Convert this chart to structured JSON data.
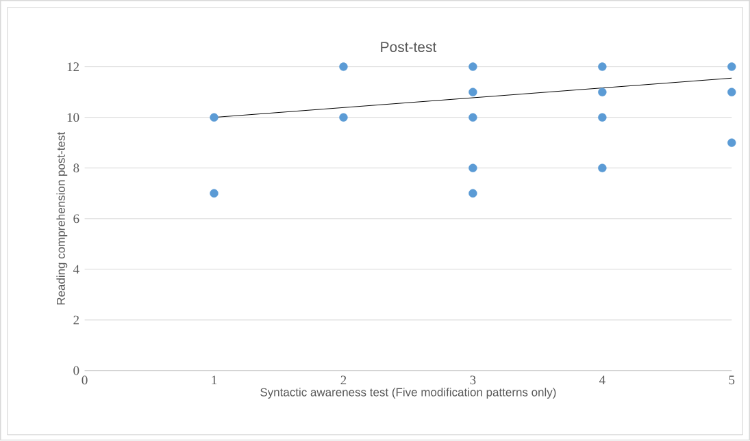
{
  "chart_data": {
    "type": "scatter",
    "title": "Post-test",
    "xlabel": "Syntactic awareness test (Five modification patterns only)",
    "ylabel": "Reading comprehension post-test",
    "series": [
      {
        "color": "#5b9bd5",
        "marker": "circle",
        "x": [
          1,
          1,
          2,
          2,
          3,
          3,
          3,
          3,
          3,
          4,
          4,
          4,
          4,
          5,
          5,
          5
        ],
        "values": [
          10,
          7,
          12,
          10,
          12,
          11,
          10,
          8,
          7,
          12,
          11,
          10,
          8,
          12,
          11,
          9
        ]
      },
      {
        "type": "line",
        "color": "#000000",
        "marker": "none",
        "line_style": "solid",
        "x": [
          1,
          5
        ],
        "values": [
          10,
          11.55
        ]
      }
    ],
    "xlim": [
      0,
      5
    ],
    "ylim": [
      0,
      12
    ],
    "xticks": [
      0,
      1,
      2,
      3,
      4,
      5
    ],
    "yticks": [
      0,
      2,
      4,
      6,
      8,
      10,
      12
    ],
    "grid": "y"
  }
}
